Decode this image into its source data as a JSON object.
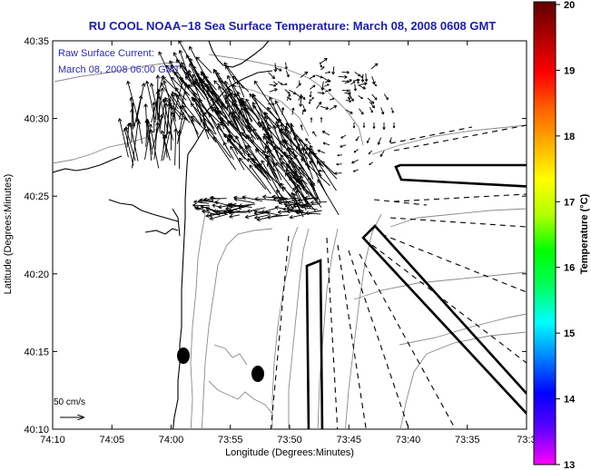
{
  "title": "RU COOL  NOAA−18  Sea Surface Temperature:  March 08, 2008 0608 GMT",
  "annotation": {
    "line1": "Raw Surface Current:",
    "line2": "March 08, 2008 06:00 GMT"
  },
  "axes": {
    "xlabel": "Longitude (Degrees:Minutes)",
    "ylabel": "Latitude (Degrees:Minutes)",
    "xticks": [
      "74:10",
      "74:05",
      "74:00",
      "73:55",
      "73:50",
      "73:45",
      "73:40",
      "73:35",
      "73:3"
    ],
    "yticks": [
      "40:35",
      "40:30",
      "40:25",
      "40:20",
      "40:15",
      "40:10"
    ]
  },
  "colorbar": {
    "label": "Temperature (°C)",
    "ticks": [
      "20",
      "19",
      "18",
      "17",
      "16",
      "15",
      "14",
      "13"
    ],
    "range": [
      13,
      20
    ],
    "colors": [
      "#ff00ff",
      "#6000ff",
      "#0000ff",
      "#0080ff",
      "#00ffff",
      "#00ff60",
      "#00ff00",
      "#b0ff00",
      "#ffff00",
      "#ffb000",
      "#ff6000",
      "#ff0000",
      "#b00000",
      "#600000"
    ]
  },
  "scale": {
    "label": "50 cm/s"
  },
  "chart_data": {
    "type": "map",
    "title": "RU COOL  NOAA−18  Sea Surface Temperature:  March 08, 2008 0608 GMT",
    "xlabel": "Longitude (Degrees:Minutes)",
    "ylabel": "Latitude (Degrees:Minutes)",
    "xlim": [
      "74:10",
      "73:30"
    ],
    "ylim": [
      "40:10",
      "40:35"
    ],
    "colorbar_range_C": [
      13,
      20
    ],
    "vector_scale": "50 cm/s",
    "current_timestamp": "March 08, 2008 06:00 GMT"
  }
}
